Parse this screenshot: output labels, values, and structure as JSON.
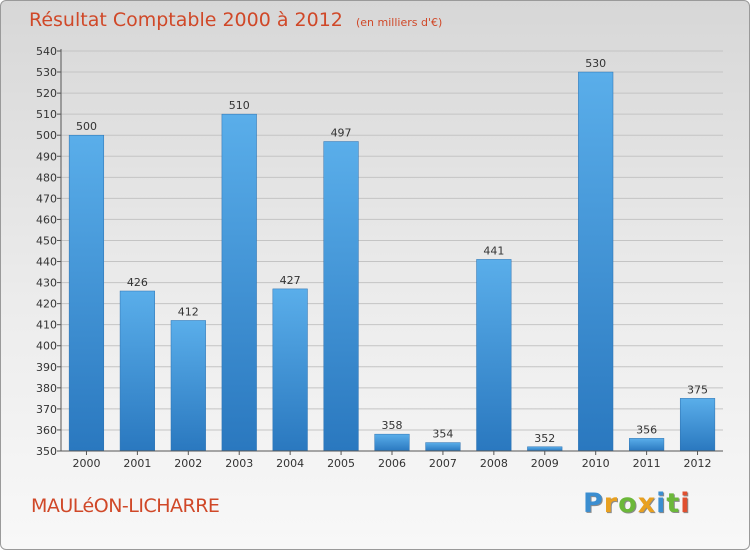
{
  "header": {
    "title": "Résultat Comptable 2000 à 2012",
    "unit": "(en milliers d'€)"
  },
  "commune": "MAULéON-LICHARRE",
  "logo": {
    "letters": [
      {
        "char": "P",
        "color": "#3b8ed0"
      },
      {
        "char": "r",
        "color": "#e8a020"
      },
      {
        "char": "o",
        "color": "#6cb83a"
      },
      {
        "char": "x",
        "color": "#e8a020"
      },
      {
        "char": "i",
        "color": "#3b8ed0"
      },
      {
        "char": "t",
        "color": "#6cb83a"
      },
      {
        "char": "i",
        "color": "#e05030"
      }
    ]
  },
  "chart_data": {
    "type": "bar",
    "categories": [
      "2000",
      "2001",
      "2002",
      "2003",
      "2004",
      "2005",
      "2006",
      "2007",
      "2008",
      "2009",
      "2010",
      "2011",
      "2012"
    ],
    "values": [
      500,
      426,
      412,
      510,
      427,
      497,
      358,
      354,
      441,
      352,
      530,
      356,
      375
    ],
    "ylim": [
      350,
      540
    ],
    "ytick_step": 10,
    "grid": true,
    "bar_color": "#3a8fd6"
  }
}
